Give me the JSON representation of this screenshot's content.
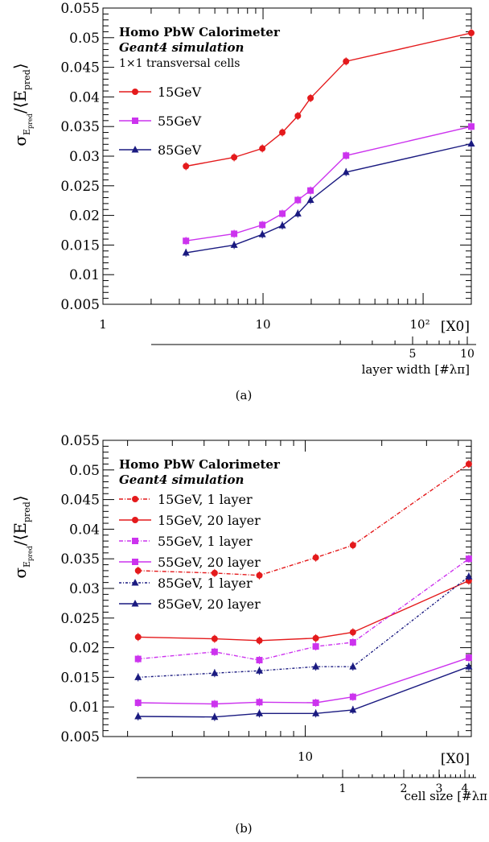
{
  "chart_data": [
    {
      "type": "line",
      "title": "Homo PbW Calorimeter",
      "subtitle": "Geant4 simulation",
      "note": "1×1 transversal cells",
      "ylabel": "σ_E_pred / ⟨E_pred⟩",
      "xlabel": "[X0]",
      "x2label": "layer width [#λπ]",
      "xscale": "log",
      "xlim": [
        1,
        200
      ],
      "ylim": [
        0.005,
        0.055
      ],
      "yticks": [
        "0.005",
        "0.01",
        "0.015",
        "0.02",
        "0.025",
        "0.03",
        "0.035",
        "0.04",
        "0.045",
        "0.05",
        "0.055"
      ],
      "xticks": [
        "1",
        "10",
        "10²"
      ],
      "x2ticks": [
        "5",
        "10"
      ],
      "legend": "top-left",
      "series": [
        {
          "name": "15GeV",
          "color": "#e41a1c",
          "marker": "circle",
          "dash": "",
          "x": [
            3.3,
            6.6,
            9.9,
            13.2,
            16.5,
            19.8,
            33,
            200
          ],
          "y": [
            0.0283,
            0.0298,
            0.0313,
            0.034,
            0.0368,
            0.0398,
            0.046,
            0.0508
          ]
        },
        {
          "name": "55GeV",
          "color": "#cc33ee",
          "marker": "square",
          "dash": "",
          "x": [
            3.3,
            6.6,
            9.9,
            13.2,
            16.5,
            19.8,
            33,
            200
          ],
          "y": [
            0.0157,
            0.0169,
            0.0184,
            0.0203,
            0.0226,
            0.0242,
            0.0301,
            0.035
          ]
        },
        {
          "name": "85GeV",
          "color": "#1a1a80",
          "marker": "triangle",
          "dash": "",
          "x": [
            3.3,
            6.6,
            9.9,
            13.2,
            16.5,
            19.8,
            33,
            200
          ],
          "y": [
            0.0137,
            0.015,
            0.0168,
            0.0183,
            0.0203,
            0.0226,
            0.0273,
            0.0321
          ]
        }
      ]
    },
    {
      "type": "line",
      "title": "Homo PbW Calorimeter",
      "subtitle": "Geant4 simulation",
      "ylabel": "σ_E_pred / ⟨E_pred⟩",
      "xlabel": "[X0]",
      "x2label": "cell size [#λπ",
      "xscale": "log",
      "xlim": [
        1.6,
        45
      ],
      "ylim": [
        0.005,
        0.055
      ],
      "yticks": [
        "0.005",
        "0.01",
        "0.015",
        "0.02",
        "0.025",
        "0.03",
        "0.035",
        "0.04",
        "0.045",
        "0.05",
        "0.055"
      ],
      "xticks": [
        "10"
      ],
      "x2ticks": [
        "1",
        "2",
        "3",
        "4"
      ],
      "legend": "top-left",
      "series": [
        {
          "name": "15GeV, 1 layer",
          "color": "#e41a1c",
          "marker": "circle",
          "dash": "5,2,1,2",
          "x": [
            2.2,
            4.4,
            6.6,
            11,
            15.4,
            44
          ],
          "y": [
            0.033,
            0.0326,
            0.0322,
            0.0352,
            0.0373,
            0.051
          ]
        },
        {
          "name": "15GeV, 20 layer",
          "color": "#e41a1c",
          "marker": "circle",
          "dash": "",
          "x": [
            2.2,
            4.4,
            6.6,
            11,
            15.4,
            44
          ],
          "y": [
            0.0218,
            0.0215,
            0.0212,
            0.0216,
            0.0226,
            0.0313
          ]
        },
        {
          "name": "55GeV, 1 layer",
          "color": "#cc33ee",
          "marker": "square",
          "dash": "5,2,1,2",
          "x": [
            2.2,
            4.4,
            6.6,
            11,
            15.4,
            44
          ],
          "y": [
            0.0181,
            0.0193,
            0.0179,
            0.0202,
            0.0209,
            0.035
          ]
        },
        {
          "name": "55GeV, 20 layer",
          "color": "#cc33ee",
          "marker": "square",
          "dash": "",
          "x": [
            2.2,
            4.4,
            6.6,
            11,
            15.4,
            44
          ],
          "y": [
            0.0107,
            0.0105,
            0.0108,
            0.0107,
            0.0117,
            0.0183
          ]
        },
        {
          "name": "85GeV, 1 layer",
          "color": "#1a1a80",
          "marker": "triangle",
          "dash": "3,2,1,2",
          "x": [
            2.2,
            4.4,
            6.6,
            11,
            15.4,
            44
          ],
          "y": [
            0.015,
            0.0157,
            0.0161,
            0.0168,
            0.0168,
            0.032
          ]
        },
        {
          "name": "85GeV, 20 layer",
          "color": "#1a1a80",
          "marker": "triangle",
          "dash": "",
          "x": [
            2.2,
            4.4,
            6.6,
            11,
            15.4,
            44
          ],
          "y": [
            0.0084,
            0.0083,
            0.0089,
            0.0089,
            0.0095,
            0.0168
          ]
        }
      ]
    }
  ],
  "captions": [
    "(a)",
    "(b)"
  ]
}
